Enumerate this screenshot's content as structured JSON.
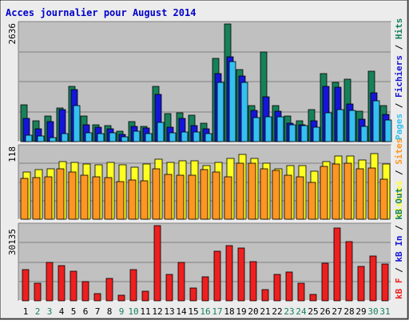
{
  "title": "Acces journalier pour August 2014",
  "colors": {
    "frame_bg": "#ececec",
    "panel_bg": "#c0c0c0",
    "title": "#0000cc",
    "hits": "#178159",
    "files": "#1515d8",
    "pages": "#34c0f0",
    "visits": "#ffff22",
    "sites": "#ff9622",
    "kb": "#ee1f1f",
    "day_weekday": "#000000",
    "day_weekend": "#178159"
  },
  "chart_data": [
    {
      "type": "bar",
      "title": "",
      "ylabel_max": "2636",
      "ymax": 2636,
      "series": [
        {
          "name": "Hits",
          "values": [
            820,
            465,
            570,
            750,
            1230,
            580,
            370,
            350,
            240,
            440,
            340,
            1240,
            630,
            640,
            590,
            420,
            1860,
            2636,
            1620,
            810,
            2000,
            800,
            580,
            460,
            720,
            1530,
            1330,
            1400,
            690,
            1570,
            800
          ]
        },
        {
          "name": "Fichiers",
          "values": [
            520,
            280,
            440,
            710,
            1160,
            380,
            320,
            280,
            160,
            340,
            310,
            1050,
            320,
            520,
            360,
            280,
            1530,
            1900,
            1470,
            700,
            1000,
            690,
            420,
            370,
            460,
            1240,
            1220,
            840,
            500,
            1100,
            610
          ]
        },
        {
          "name": "Pages",
          "values": [
            140,
            120,
            90,
            180,
            800,
            200,
            180,
            200,
            100,
            230,
            180,
            430,
            200,
            220,
            220,
            180,
            1330,
            1800,
            1330,
            540,
            560,
            560,
            380,
            360,
            330,
            650,
            720,
            700,
            340,
            920,
            480
          ]
        }
      ]
    },
    {
      "type": "bar",
      "title": "",
      "ylabel_max": "118",
      "ymax": 118,
      "series": [
        {
          "name": "Visites",
          "values": [
            78,
            81,
            82,
            95,
            93,
            91,
            89,
            93,
            89,
            85,
            91,
            98,
            93,
            96,
            96,
            88,
            93,
            99,
            106,
            100,
            92,
            83,
            88,
            88,
            79,
            95,
            103,
            103,
            97,
            107,
            91
          ]
        },
        {
          "name": "Sites",
          "values": [
            67,
            68,
            70,
            82,
            78,
            72,
            70,
            68,
            62,
            64,
            63,
            82,
            74,
            72,
            72,
            81,
            77,
            70,
            92,
            92,
            83,
            80,
            72,
            70,
            60,
            86,
            91,
            92,
            83,
            84,
            65
          ]
        }
      ]
    },
    {
      "type": "bar",
      "title": "",
      "ylabel_max": "30135",
      "ymax": 30135,
      "series": [
        {
          "name": "kB F",
          "values": [
            12500,
            7200,
            15500,
            14200,
            12000,
            7700,
            3000,
            8900,
            2200,
            12500,
            4000,
            30135,
            10600,
            15300,
            5200,
            9600,
            20000,
            22000,
            21100,
            15800,
            4500,
            10700,
            11600,
            6900,
            2700,
            15200,
            29200,
            23700,
            13800,
            18100,
            14900
          ]
        }
      ]
    }
  ],
  "legend": {
    "top": [
      "Pages",
      "Fichiers",
      "Hits"
    ],
    "mid": [
      "Visites",
      "Sites"
    ],
    "bottom": [
      "kB F",
      "kB In",
      "kB Out"
    ]
  },
  "days": [
    "1",
    "2",
    "3",
    "4",
    "5",
    "6",
    "7",
    "8",
    "9",
    "10",
    "11",
    "12",
    "13",
    "14",
    "15",
    "16",
    "17",
    "18",
    "19",
    "20",
    "21",
    "22",
    "23",
    "24",
    "25",
    "26",
    "27",
    "28",
    "29",
    "30",
    "31"
  ],
  "weekend_days": [
    2,
    3,
    9,
    10,
    16,
    17,
    23,
    24,
    30,
    31
  ]
}
